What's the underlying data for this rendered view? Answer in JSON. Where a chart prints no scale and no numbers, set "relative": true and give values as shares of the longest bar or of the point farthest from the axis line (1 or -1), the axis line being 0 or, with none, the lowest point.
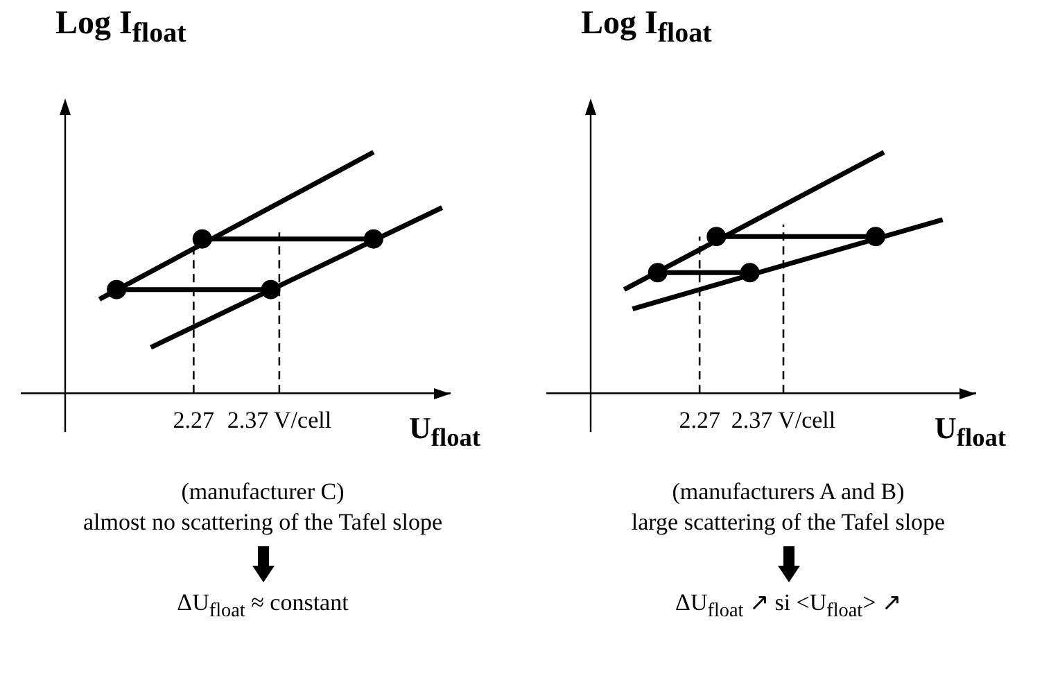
{
  "chart_data": [
    {
      "type": "line",
      "ylabel": "Log I$_{float}$",
      "xlabel": "U$_{float}$",
      "relative": true,
      "grid": false,
      "legend": false,
      "xlim": [
        2.12,
        2.57
      ],
      "xticks": [
        2.27,
        {
          "value": 2.37,
          "label": "2.37 V/cell"
        }
      ],
      "annotations": [
        "(manufacturer C)",
        "almost no scattering of the Tafel slope",
        "ΔU$_{float}$ ≈ constant"
      ],
      "series": [
        {
          "type": "line",
          "color": "#000000",
          "x": [
            2.16,
            2.48
          ],
          "values": [
            0.39,
            1
          ]
        },
        {
          "type": "line",
          "color": "#000000",
          "x": [
            2.22,
            2.56
          ],
          "values": [
            0.19,
            0.77
          ]
        },
        {
          "type": "line",
          "color": "#000000",
          "x": [
            2.28,
            2.48
          ],
          "values": [
            0.64,
            0.64
          ]
        },
        {
          "type": "line",
          "color": "#000000",
          "x": [
            2.18,
            2.36
          ],
          "values": [
            0.43,
            0.43
          ]
        },
        {
          "type": "line",
          "color": "#000000",
          "line_style": "dashed",
          "x": [
            2.27,
            2.27
          ],
          "values": [
            0,
            0.64
          ]
        },
        {
          "type": "line",
          "color": "#000000",
          "line_style": "dashed",
          "x": [
            2.37,
            2.37
          ],
          "values": [
            0,
            0.68
          ]
        },
        {
          "type": "scatter",
          "color": "#000000",
          "marker": "circle",
          "x": [
            2.18,
            2.28,
            2.36,
            2.48
          ],
          "values": [
            0.43,
            0.64,
            0.43,
            0.64
          ]
        }
      ]
    },
    {
      "type": "line",
      "ylabel": "Log I$_{float}$",
      "xlabel": "U$_{float}$",
      "relative": true,
      "grid": false,
      "legend": false,
      "xlim": [
        2.14,
        2.6
      ],
      "xticks": [
        2.27,
        {
          "value": 2.37,
          "label": "2.37 V/cell"
        }
      ],
      "annotations": [
        "(manufacturers A and B)",
        "large scattering of the Tafel slope",
        "ΔU$_{float}$ ↗  si <U$_{float}$> ↗"
      ],
      "series": [
        {
          "type": "line",
          "color": "#000000",
          "x": [
            2.18,
            2.49
          ],
          "values": [
            0.43,
            1
          ]
        },
        {
          "type": "line",
          "color": "#000000",
          "x": [
            2.19,
            2.56
          ],
          "values": [
            0.35,
            0.72
          ]
        },
        {
          "type": "line",
          "color": "#000000",
          "x": [
            2.29,
            2.48
          ],
          "values": [
            0.65,
            0.65
          ]
        },
        {
          "type": "line",
          "color": "#000000",
          "x": [
            2.22,
            2.33
          ],
          "values": [
            0.5,
            0.5
          ]
        },
        {
          "type": "line",
          "color": "#000000",
          "line_style": "dashed",
          "x": [
            2.27,
            2.27
          ],
          "values": [
            0,
            0.65
          ]
        },
        {
          "type": "line",
          "color": "#000000",
          "line_style": "dashed",
          "x": [
            2.37,
            2.37
          ],
          "values": [
            0,
            0.7
          ]
        },
        {
          "type": "scatter",
          "color": "#000000",
          "marker": "circle",
          "x": [
            2.22,
            2.29,
            2.33,
            2.48
          ],
          "values": [
            0.5,
            0.65,
            0.5,
            0.65
          ]
        }
      ]
    }
  ]
}
